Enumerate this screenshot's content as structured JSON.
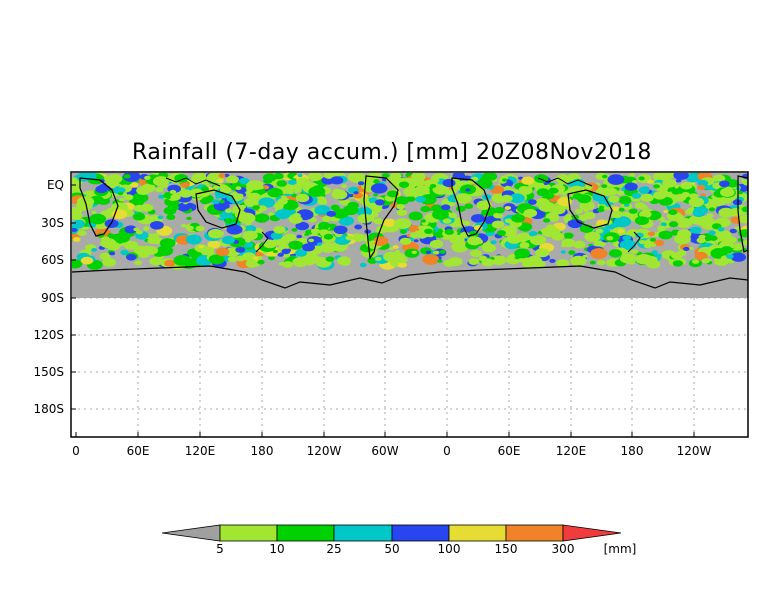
{
  "title": "Rainfall (7-day accum.) [mm] 20Z08Nov2018",
  "map": {
    "lat_labels": [
      "EQ",
      "30S",
      "60S",
      "90S",
      "120S",
      "150S",
      "180S"
    ],
    "lon_labels": [
      "0",
      "60E",
      "120E",
      "180",
      "120W",
      "60W",
      "0",
      "60E",
      "120E",
      "180",
      "120W"
    ],
    "grid": "dotted",
    "colors": {
      "land_mask": "#aaaaaa",
      "coast": "#000000",
      "grid": "#aaaaaa"
    }
  },
  "colorbar": {
    "units": "[mm]",
    "labels": [
      "5",
      "10",
      "25",
      "50",
      "100",
      "150",
      "300"
    ],
    "colors": [
      "#a0a0a0",
      "#a0e632",
      "#00d200",
      "#00c8c8",
      "#2846f0",
      "#e6dc32",
      "#f08228",
      "#f03c3c"
    ]
  }
}
